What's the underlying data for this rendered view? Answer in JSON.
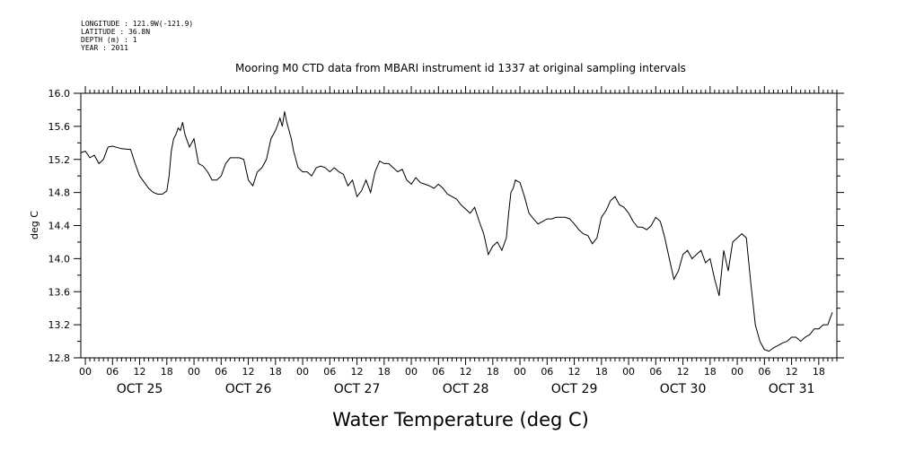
{
  "header": {
    "longitude": "LONGITUDE : 121.9W(-121.9)",
    "latitude": "LATITUDE : 36.8N",
    "depth": "DEPTH (m) : 1",
    "year": "YEAR : 2011"
  },
  "chart_data": {
    "type": "line",
    "title": "Mooring M0 CTD data from MBARI instrument id 1337 at original sampling intervals",
    "xlabel": "Water Temperature (deg C)",
    "ylabel": "deg C",
    "ylim": [
      12.8,
      16.0
    ],
    "yticks": [
      "12.8",
      "13.2",
      "13.6",
      "14.0",
      "14.4",
      "14.8",
      "15.2",
      "15.6",
      "16.0"
    ],
    "hour_ticks": [
      "00",
      "06",
      "12",
      "18"
    ],
    "days": [
      "OCT 25",
      "OCT 26",
      "OCT 27",
      "OCT 28",
      "OCT 29",
      "OCT 30",
      "OCT 31"
    ],
    "xlim_hours": [
      -1,
      166
    ],
    "grid": false,
    "line_color": "#000000",
    "series": [
      {
        "x": [
          -1,
          0,
          1,
          2,
          3,
          4,
          5,
          6,
          8,
          10,
          11,
          12,
          14,
          15,
          16,
          17,
          18,
          18.5,
          19,
          19.5,
          20,
          20.5,
          21,
          21.5,
          22,
          23,
          24,
          25,
          26,
          27,
          28,
          29,
          30,
          31,
          32,
          33,
          34,
          35,
          36,
          37,
          38,
          39,
          40,
          41,
          42,
          42.5,
          43,
          43.5,
          44,
          44.5,
          45,
          45.5,
          46,
          47,
          48,
          49,
          50,
          51,
          52,
          53,
          54,
          55,
          56,
          57,
          58,
          59,
          60,
          61,
          62,
          63,
          64,
          65,
          66,
          67,
          68,
          69,
          70,
          71,
          72,
          73,
          74,
          75,
          76,
          77,
          78,
          79,
          80,
          81,
          82,
          83,
          84,
          85,
          86,
          87,
          88,
          89,
          90,
          91,
          92,
          93,
          93.5,
          94,
          94.5,
          95,
          96,
          97,
          98,
          99,
          100,
          101,
          102,
          103,
          104,
          105,
          106,
          107,
          108,
          109,
          110,
          111,
          112,
          113,
          114,
          115,
          116,
          117,
          118,
          119,
          120,
          121,
          122,
          123,
          124,
          125,
          126,
          127,
          128,
          129,
          130,
          131,
          132,
          133,
          134,
          135,
          136,
          137,
          138,
          139,
          140,
          141,
          142,
          143,
          144,
          145,
          146,
          147,
          148,
          149,
          150,
          151,
          152,
          153,
          154,
          155,
          156,
          157,
          158,
          159,
          160,
          161,
          162,
          163,
          164,
          165
        ],
        "y": [
          15.28,
          15.3,
          15.22,
          15.25,
          15.15,
          15.2,
          15.35,
          15.36,
          15.33,
          15.32,
          15.15,
          15.0,
          14.85,
          14.8,
          14.78,
          14.78,
          14.82,
          15.0,
          15.3,
          15.45,
          15.5,
          15.58,
          15.55,
          15.65,
          15.5,
          15.35,
          15.45,
          15.15,
          15.12,
          15.05,
          14.95,
          14.95,
          15.0,
          15.15,
          15.22,
          15.22,
          15.22,
          15.2,
          14.95,
          14.88,
          15.05,
          15.1,
          15.2,
          15.45,
          15.55,
          15.62,
          15.7,
          15.6,
          15.78,
          15.65,
          15.55,
          15.45,
          15.3,
          15.1,
          15.05,
          15.05,
          15.0,
          15.1,
          15.12,
          15.1,
          15.05,
          15.1,
          15.05,
          15.02,
          14.88,
          14.95,
          14.75,
          14.82,
          14.95,
          14.8,
          15.05,
          15.18,
          15.15,
          15.15,
          15.1,
          15.05,
          15.08,
          14.95,
          14.9,
          14.98,
          14.92,
          14.9,
          14.88,
          14.85,
          14.9,
          14.85,
          14.78,
          14.75,
          14.72,
          14.65,
          14.6,
          14.55,
          14.62,
          14.45,
          14.3,
          14.05,
          14.15,
          14.2,
          14.1,
          14.25,
          14.55,
          14.8,
          14.85,
          14.95,
          14.92,
          14.75,
          14.55,
          14.48,
          14.42,
          14.45,
          14.48,
          14.48,
          14.5,
          14.5,
          14.5,
          14.48,
          14.42,
          14.35,
          14.3,
          14.28,
          14.18,
          14.25,
          14.5,
          14.58,
          14.7,
          14.75,
          14.65,
          14.62,
          14.55,
          14.45,
          14.38,
          14.38,
          14.35,
          14.4,
          14.5,
          14.45,
          14.25,
          14.0,
          13.75,
          13.85,
          14.05,
          14.1,
          14.0,
          14.05,
          14.1,
          13.95,
          14.0,
          13.75,
          13.55,
          14.1,
          13.85,
          14.2,
          14.25,
          14.3,
          14.25,
          13.7,
          13.2,
          13.0,
          12.9,
          12.88,
          12.92,
          12.95,
          12.98,
          13.0,
          13.05,
          13.05,
          13.0,
          13.05,
          13.08,
          13.15,
          13.15,
          13.2,
          13.2,
          13.35
        ]
      }
    ]
  }
}
